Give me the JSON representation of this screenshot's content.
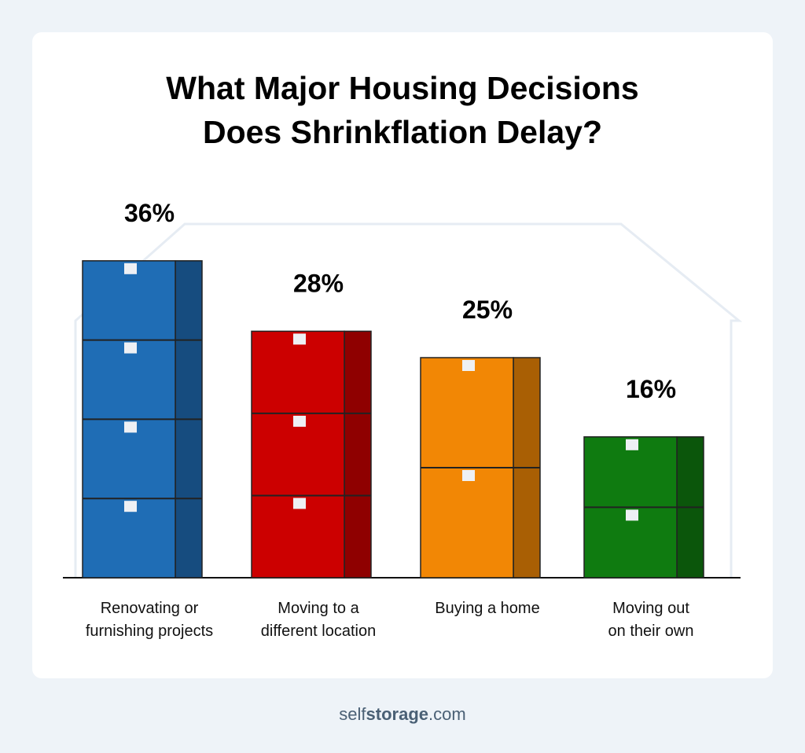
{
  "chart_data": {
    "type": "bar",
    "title": "What Major Housing Decisions\nDoes Shrinkflation Delay?",
    "categories": [
      "Renovating or\nfurnishing projects",
      "Moving to a\ndifferent location",
      "Buying a home",
      "Moving out\non their own"
    ],
    "values": [
      36,
      28,
      25,
      16
    ],
    "value_labels": [
      "36%",
      "28%",
      "25%",
      "16%"
    ],
    "colors": [
      "#1f6db5",
      "#cc0000",
      "#f28705",
      "#0f7b10"
    ],
    "footer": [
      "self",
      "storage",
      ".com"
    ]
  }
}
